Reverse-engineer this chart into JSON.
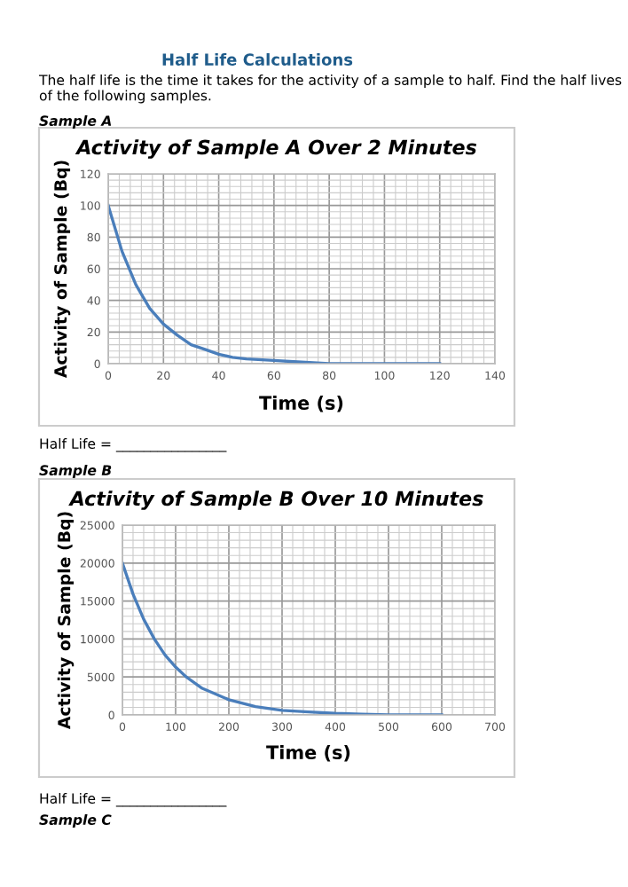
{
  "chart_data": [
    {
      "type": "line",
      "title": "Activity of Sample A Over 2 Minutes",
      "xlabel": "Time (s)",
      "ylabel": "Activity of Sample (Bq)",
      "x": [
        0,
        5,
        10,
        15,
        20,
        25,
        30,
        35,
        40,
        45,
        50,
        60,
        70,
        80,
        90,
        100,
        110,
        120
      ],
      "series": [
        {
          "color": "#4a7ebb",
          "values": [
            100,
            71,
            50,
            35,
            25,
            18,
            12,
            9,
            6,
            4,
            3,
            2,
            1,
            0,
            0,
            0,
            0,
            0
          ]
        }
      ],
      "xlim": [
        0,
        140
      ],
      "xticks": [
        0,
        20,
        40,
        60,
        80,
        100,
        120,
        140
      ],
      "ylim": [
        0,
        120
      ],
      "yticks": [
        0,
        20,
        40,
        60,
        80,
        100,
        120
      ],
      "grid": true,
      "legend": false,
      "marker": "none",
      "line_style": "solid",
      "annotations": [
        "Half Life Calculations",
        "The half life is the time it takes for the activity of a sample to half. Find the half lives of the following samples.",
        "Sample A",
        "Half Life = ________________"
      ]
    },
    {
      "type": "line",
      "title": "Activity of Sample B Over 10 Minutes",
      "xlabel": "Time (s)",
      "ylabel": "Activity of Sample (Bq)",
      "x": [
        0,
        20,
        40,
        60,
        80,
        100,
        120,
        150,
        200,
        250,
        300,
        350,
        400,
        450,
        500,
        550,
        600
      ],
      "series": [
        {
          "color": "#4a7ebb",
          "values": [
            20000,
            15900,
            12600,
            10000,
            7900,
            6300,
            5000,
            3500,
            2000,
            1100,
            600,
            400,
            200,
            100,
            0,
            0,
            0
          ]
        }
      ],
      "xlim": [
        0,
        700
      ],
      "xticks": [
        0,
        100,
        200,
        300,
        400,
        500,
        600,
        700
      ],
      "ylim": [
        0,
        25000
      ],
      "yticks": [
        0,
        5000,
        10000,
        15000,
        20000,
        25000
      ],
      "grid": true,
      "legend": false,
      "marker": "none",
      "line_style": "solid",
      "annotations": [
        "Sample B",
        "Half Life = ________________",
        "Sample C"
      ]
    }
  ]
}
